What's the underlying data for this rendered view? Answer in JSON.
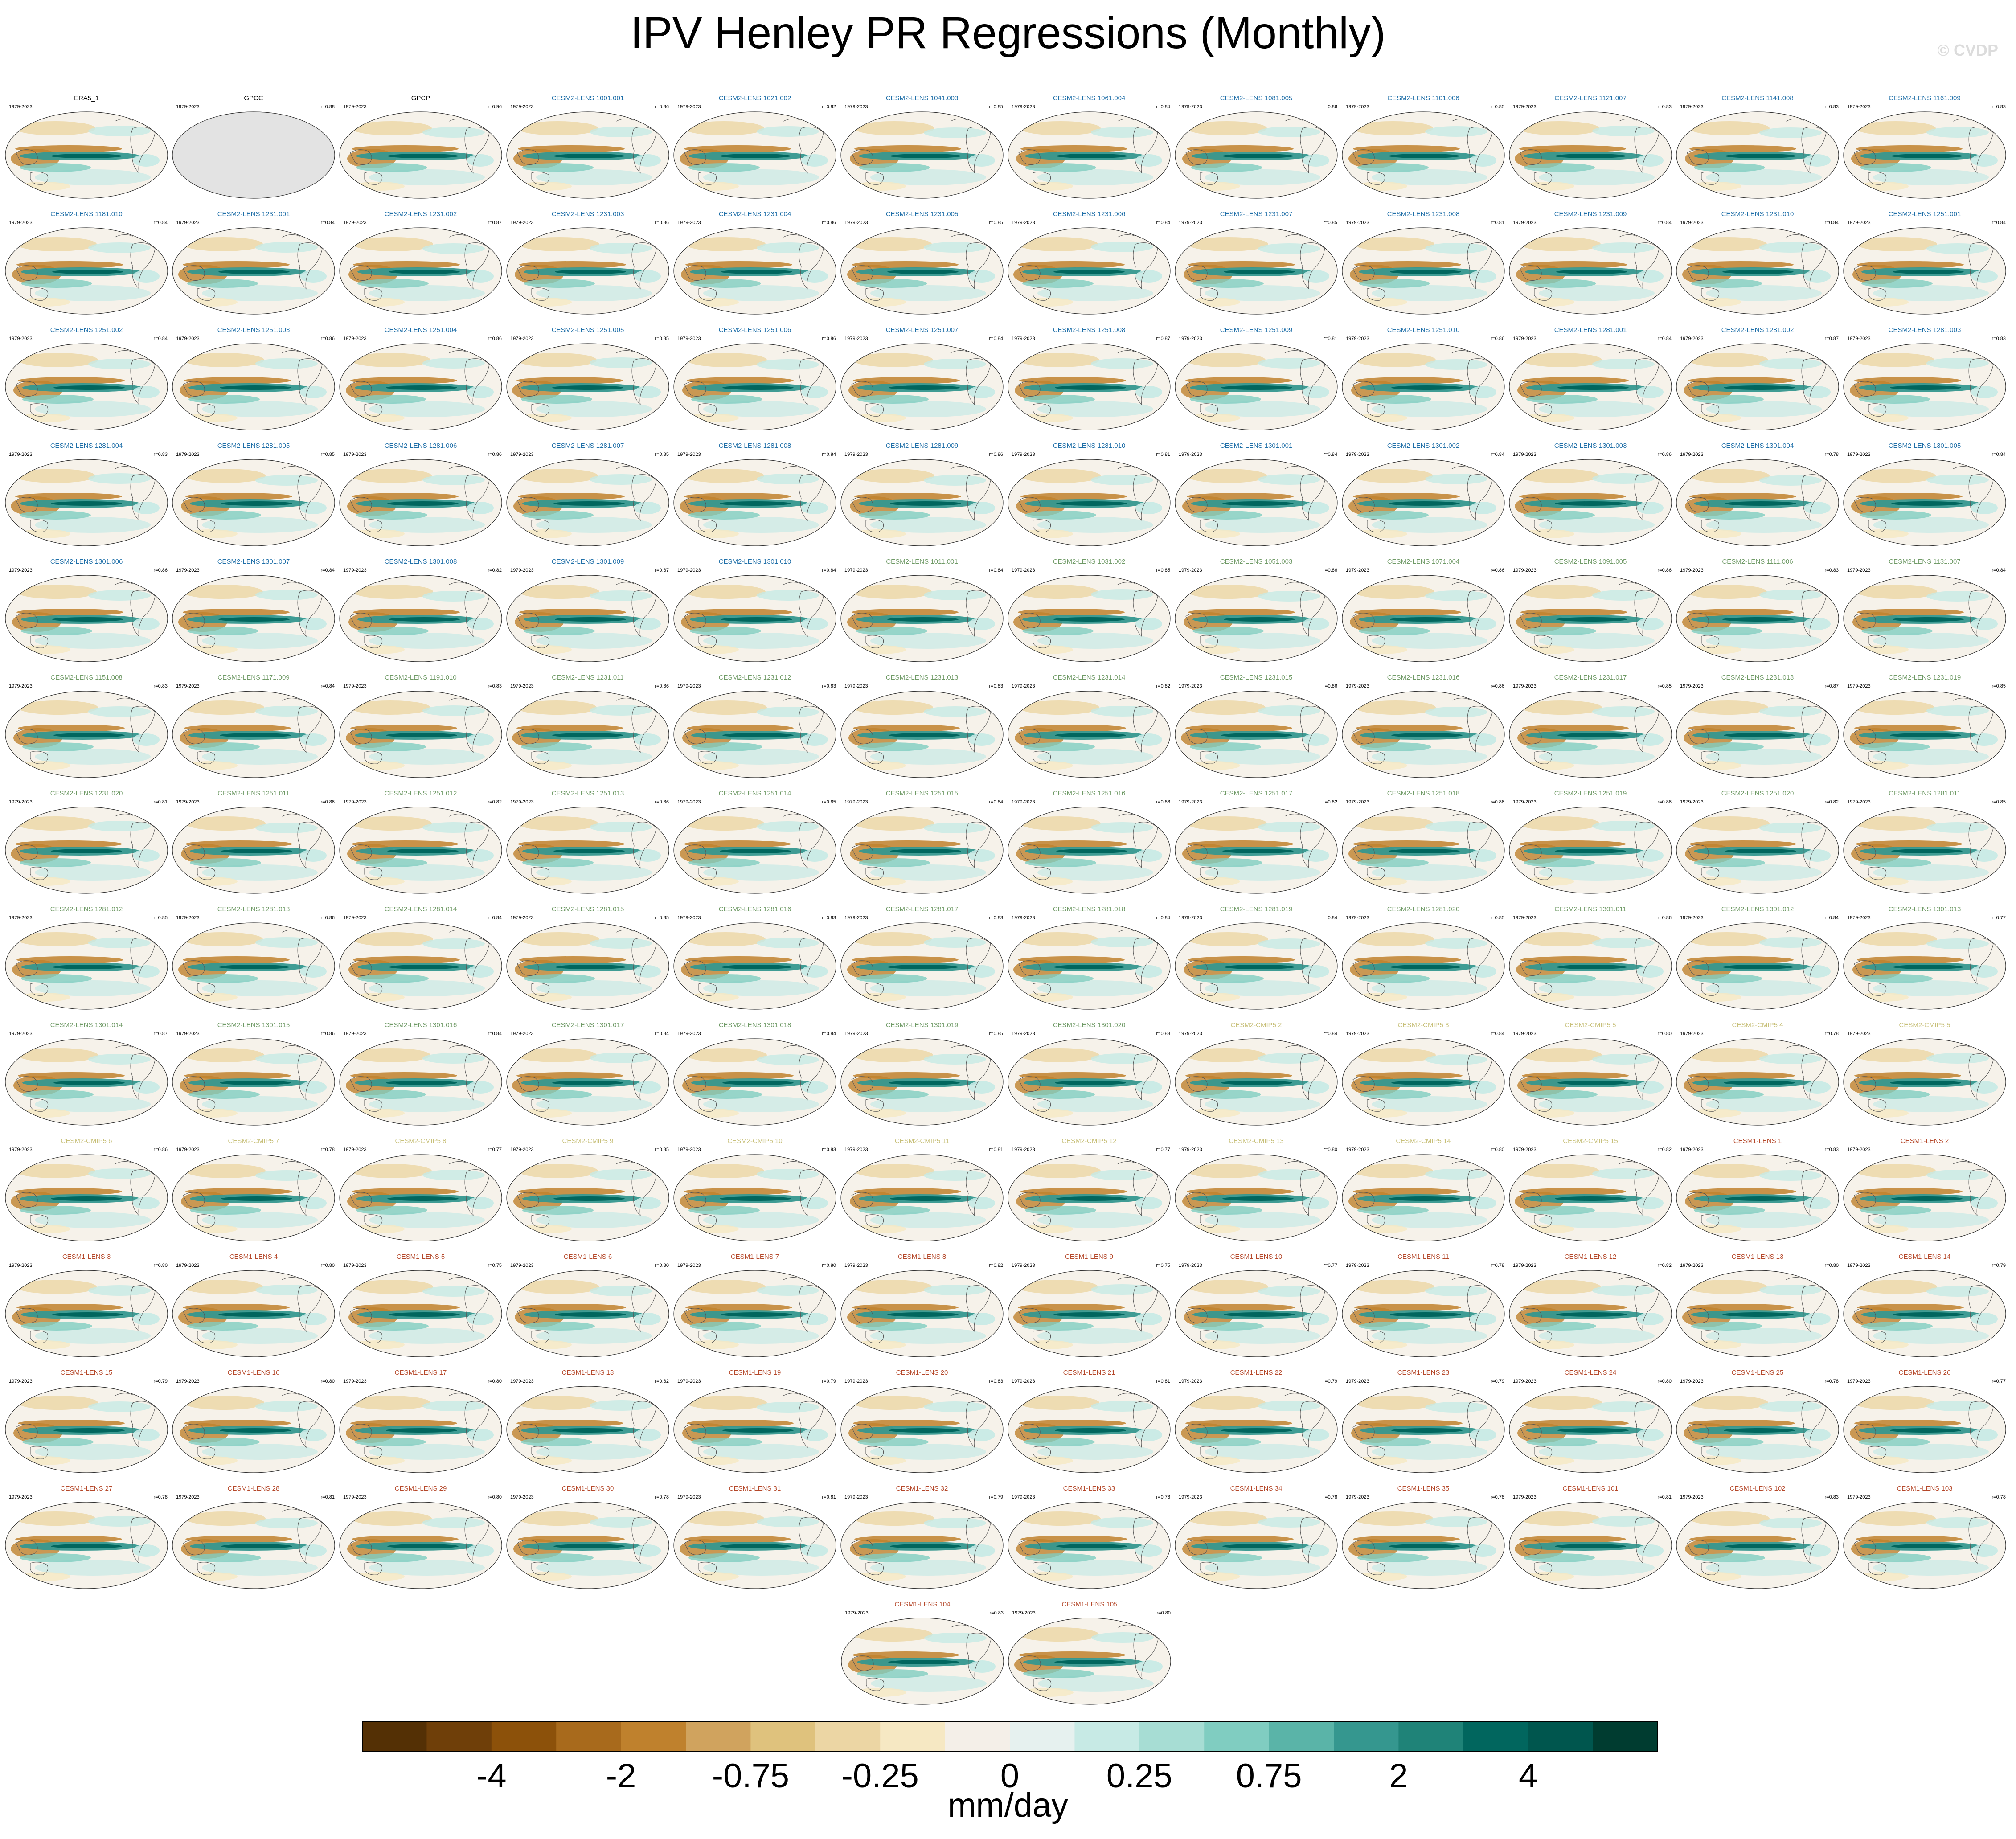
{
  "title": "IPV Henley PR Regressions (Monthly)",
  "watermark": "© CVDP",
  "period": "1979-2023",
  "units": "mm/day",
  "colorbar": {
    "colors": [
      "#543005",
      "#6f3f09",
      "#8c510a",
      "#a86a1c",
      "#bf812d",
      "#d0a35e",
      "#dfc27d",
      "#ecd6a4",
      "#f6e8c3",
      "#f4efe8",
      "#e6f1ef",
      "#c7eae5",
      "#a7ddd4",
      "#80cdc1",
      "#5ab4a8",
      "#35978f",
      "#1f8378",
      "#01665e",
      "#00564e",
      "#003c30"
    ],
    "tick_labels": [
      "-4",
      "-2",
      "-0.75",
      "-0.25",
      "0",
      "0.25",
      "0.75",
      "2",
      "4"
    ]
  },
  "group_colors": {
    "obs": "#000000",
    "cesm2": "#1f6fa8",
    "cesm2_smbb": "#6f9a66",
    "cmip5": "#c8c07a",
    "cesm1": "#b5482a"
  },
  "panels": [
    {
      "title": "ERA5_1",
      "group": "obs",
      "r": ""
    },
    {
      "title": "GPCC",
      "group": "obs",
      "r": "r=0.88",
      "nodata": true
    },
    {
      "title": "GPCP",
      "group": "obs",
      "r": "r=0.96"
    },
    {
      "title": "CESM2-LENS 1001.001",
      "group": "cesm2",
      "r": "r=0.86"
    },
    {
      "title": "CESM2-LENS 1021.002",
      "group": "cesm2",
      "r": "r=0.82"
    },
    {
      "title": "CESM2-LENS 1041.003",
      "group": "cesm2",
      "r": "r=0.85"
    },
    {
      "title": "CESM2-LENS 1061.004",
      "group": "cesm2",
      "r": "r=0.84"
    },
    {
      "title": "CESM2-LENS 1081.005",
      "group": "cesm2",
      "r": "r=0.86"
    },
    {
      "title": "CESM2-LENS 1101.006",
      "group": "cesm2",
      "r": "r=0.85"
    },
    {
      "title": "CESM2-LENS 1121.007",
      "group": "cesm2",
      "r": "r=0.83"
    },
    {
      "title": "CESM2-LENS 1141.008",
      "group": "cesm2",
      "r": "r=0.83"
    },
    {
      "title": "CESM2-LENS 1161.009",
      "group": "cesm2",
      "r": "r=0.83"
    },
    {
      "title": "CESM2-LENS 1181.010",
      "group": "cesm2",
      "r": "r=0.84"
    },
    {
      "title": "CESM2-LENS 1231.001",
      "group": "cesm2",
      "r": "r=0.84"
    },
    {
      "title": "CESM2-LENS 1231.002",
      "group": "cesm2",
      "r": "r=0.87"
    },
    {
      "title": "CESM2-LENS 1231.003",
      "group": "cesm2",
      "r": "r=0.86"
    },
    {
      "title": "CESM2-LENS 1231.004",
      "group": "cesm2",
      "r": "r=0.86"
    },
    {
      "title": "CESM2-LENS 1231.005",
      "group": "cesm2",
      "r": "r=0.85"
    },
    {
      "title": "CESM2-LENS 1231.006",
      "group": "cesm2",
      "r": "r=0.84"
    },
    {
      "title": "CESM2-LENS 1231.007",
      "group": "cesm2",
      "r": "r=0.85"
    },
    {
      "title": "CESM2-LENS 1231.008",
      "group": "cesm2",
      "r": "r=0.81"
    },
    {
      "title": "CESM2-LENS 1231.009",
      "group": "cesm2",
      "r": "r=0.84"
    },
    {
      "title": "CESM2-LENS 1231.010",
      "group": "cesm2",
      "r": "r=0.84"
    },
    {
      "title": "CESM2-LENS 1251.001",
      "group": "cesm2",
      "r": "r=0.84"
    },
    {
      "title": "CESM2-LENS 1251.002",
      "group": "cesm2",
      "r": "r=0.84"
    },
    {
      "title": "CESM2-LENS 1251.003",
      "group": "cesm2",
      "r": "r=0.86"
    },
    {
      "title": "CESM2-LENS 1251.004",
      "group": "cesm2",
      "r": "r=0.86"
    },
    {
      "title": "CESM2-LENS 1251.005",
      "group": "cesm2",
      "r": "r=0.85"
    },
    {
      "title": "CESM2-LENS 1251.006",
      "group": "cesm2",
      "r": "r=0.86"
    },
    {
      "title": "CESM2-LENS 1251.007",
      "group": "cesm2",
      "r": "r=0.84"
    },
    {
      "title": "CESM2-LENS 1251.008",
      "group": "cesm2",
      "r": "r=0.87"
    },
    {
      "title": "CESM2-LENS 1251.009",
      "group": "cesm2",
      "r": "r=0.81"
    },
    {
      "title": "CESM2-LENS 1251.010",
      "group": "cesm2",
      "r": "r=0.86"
    },
    {
      "title": "CESM2-LENS 1281.001",
      "group": "cesm2",
      "r": "r=0.84"
    },
    {
      "title": "CESM2-LENS 1281.002",
      "group": "cesm2",
      "r": "r=0.87"
    },
    {
      "title": "CESM2-LENS 1281.003",
      "group": "cesm2",
      "r": "r=0.83"
    },
    {
      "title": "CESM2-LENS 1281.004",
      "group": "cesm2",
      "r": "r=0.83"
    },
    {
      "title": "CESM2-LENS 1281.005",
      "group": "cesm2",
      "r": "r=0.85"
    },
    {
      "title": "CESM2-LENS 1281.006",
      "group": "cesm2",
      "r": "r=0.86"
    },
    {
      "title": "CESM2-LENS 1281.007",
      "group": "cesm2",
      "r": "r=0.85"
    },
    {
      "title": "CESM2-LENS 1281.008",
      "group": "cesm2",
      "r": "r=0.84"
    },
    {
      "title": "CESM2-LENS 1281.009",
      "group": "cesm2",
      "r": "r=0.86"
    },
    {
      "title": "CESM2-LENS 1281.010",
      "group": "cesm2",
      "r": "r=0.81"
    },
    {
      "title": "CESM2-LENS 1301.001",
      "group": "cesm2",
      "r": "r=0.84"
    },
    {
      "title": "CESM2-LENS 1301.002",
      "group": "cesm2",
      "r": "r=0.84"
    },
    {
      "title": "CESM2-LENS 1301.003",
      "group": "cesm2",
      "r": "r=0.86"
    },
    {
      "title": "CESM2-LENS 1301.004",
      "group": "cesm2",
      "r": "r=0.78"
    },
    {
      "title": "CESM2-LENS 1301.005",
      "group": "cesm2",
      "r": "r=0.84"
    },
    {
      "title": "CESM2-LENS 1301.006",
      "group": "cesm2",
      "r": "r=0.86"
    },
    {
      "title": "CESM2-LENS 1301.007",
      "group": "cesm2",
      "r": "r=0.84"
    },
    {
      "title": "CESM2-LENS 1301.008",
      "group": "cesm2",
      "r": "r=0.82"
    },
    {
      "title": "CESM2-LENS 1301.009",
      "group": "cesm2",
      "r": "r=0.87"
    },
    {
      "title": "CESM2-LENS 1301.010",
      "group": "cesm2",
      "r": "r=0.84"
    },
    {
      "title": "CESM2-LENS 1011.001",
      "group": "cesm2_smbb",
      "r": "r=0.84"
    },
    {
      "title": "CESM2-LENS 1031.002",
      "group": "cesm2_smbb",
      "r": "r=0.85"
    },
    {
      "title": "CESM2-LENS 1051.003",
      "group": "cesm2_smbb",
      "r": "r=0.86"
    },
    {
      "title": "CESM2-LENS 1071.004",
      "group": "cesm2_smbb",
      "r": "r=0.86"
    },
    {
      "title": "CESM2-LENS 1091.005",
      "group": "cesm2_smbb",
      "r": "r=0.86"
    },
    {
      "title": "CESM2-LENS 1111.006",
      "group": "cesm2_smbb",
      "r": "r=0.83"
    },
    {
      "title": "CESM2-LENS 1131.007",
      "group": "cesm2_smbb",
      "r": "r=0.84"
    },
    {
      "title": "CESM2-LENS 1151.008",
      "group": "cesm2_smbb",
      "r": "r=0.83"
    },
    {
      "title": "CESM2-LENS 1171.009",
      "group": "cesm2_smbb",
      "r": "r=0.84"
    },
    {
      "title": "CESM2-LENS 1191.010",
      "group": "cesm2_smbb",
      "r": "r=0.83"
    },
    {
      "title": "CESM2-LENS 1231.011",
      "group": "cesm2_smbb",
      "r": "r=0.86"
    },
    {
      "title": "CESM2-LENS 1231.012",
      "group": "cesm2_smbb",
      "r": "r=0.83"
    },
    {
      "title": "CESM2-LENS 1231.013",
      "group": "cesm2_smbb",
      "r": "r=0.83"
    },
    {
      "title": "CESM2-LENS 1231.014",
      "group": "cesm2_smbb",
      "r": "r=0.82"
    },
    {
      "title": "CESM2-LENS 1231.015",
      "group": "cesm2_smbb",
      "r": "r=0.86"
    },
    {
      "title": "CESM2-LENS 1231.016",
      "group": "cesm2_smbb",
      "r": "r=0.86"
    },
    {
      "title": "CESM2-LENS 1231.017",
      "group": "cesm2_smbb",
      "r": "r=0.85"
    },
    {
      "title": "CESM2-LENS 1231.018",
      "group": "cesm2_smbb",
      "r": "r=0.87"
    },
    {
      "title": "CESM2-LENS 1231.019",
      "group": "cesm2_smbb",
      "r": "r=0.85"
    },
    {
      "title": "CESM2-LENS 1231.020",
      "group": "cesm2_smbb",
      "r": "r=0.81"
    },
    {
      "title": "CESM2-LENS 1251.011",
      "group": "cesm2_smbb",
      "r": "r=0.86"
    },
    {
      "title": "CESM2-LENS 1251.012",
      "group": "cesm2_smbb",
      "r": "r=0.82"
    },
    {
      "title": "CESM2-LENS 1251.013",
      "group": "cesm2_smbb",
      "r": "r=0.86"
    },
    {
      "title": "CESM2-LENS 1251.014",
      "group": "cesm2_smbb",
      "r": "r=0.85"
    },
    {
      "title": "CESM2-LENS 1251.015",
      "group": "cesm2_smbb",
      "r": "r=0.84"
    },
    {
      "title": "CESM2-LENS 1251.016",
      "group": "cesm2_smbb",
      "r": "r=0.86"
    },
    {
      "title": "CESM2-LENS 1251.017",
      "group": "cesm2_smbb",
      "r": "r=0.82"
    },
    {
      "title": "CESM2-LENS 1251.018",
      "group": "cesm2_smbb",
      "r": "r=0.86"
    },
    {
      "title": "CESM2-LENS 1251.019",
      "group": "cesm2_smbb",
      "r": "r=0.86"
    },
    {
      "title": "CESM2-LENS 1251.020",
      "group": "cesm2_smbb",
      "r": "r=0.82"
    },
    {
      "title": "CESM2-LENS 1281.011",
      "group": "cesm2_smbb",
      "r": "r=0.85"
    },
    {
      "title": "CESM2-LENS 1281.012",
      "group": "cesm2_smbb",
      "r": "r=0.85"
    },
    {
      "title": "CESM2-LENS 1281.013",
      "group": "cesm2_smbb",
      "r": "r=0.86"
    },
    {
      "title": "CESM2-LENS 1281.014",
      "group": "cesm2_smbb",
      "r": "r=0.84"
    },
    {
      "title": "CESM2-LENS 1281.015",
      "group": "cesm2_smbb",
      "r": "r=0.85"
    },
    {
      "title": "CESM2-LENS 1281.016",
      "group": "cesm2_smbb",
      "r": "r=0.83"
    },
    {
      "title": "CESM2-LENS 1281.017",
      "group": "cesm2_smbb",
      "r": "r=0.83"
    },
    {
      "title": "CESM2-LENS 1281.018",
      "group": "cesm2_smbb",
      "r": "r=0.84"
    },
    {
      "title": "CESM2-LENS 1281.019",
      "group": "cesm2_smbb",
      "r": "r=0.84"
    },
    {
      "title": "CESM2-LENS 1281.020",
      "group": "cesm2_smbb",
      "r": "r=0.85"
    },
    {
      "title": "CESM2-LENS 1301.011",
      "group": "cesm2_smbb",
      "r": "r=0.86"
    },
    {
      "title": "CESM2-LENS 1301.012",
      "group": "cesm2_smbb",
      "r": "r=0.84"
    },
    {
      "title": "CESM2-LENS 1301.013",
      "group": "cesm2_smbb",
      "r": "r=0.77"
    },
    {
      "title": "CESM2-LENS 1301.014",
      "group": "cesm2_smbb",
      "r": "r=0.87"
    },
    {
      "title": "CESM2-LENS 1301.015",
      "group": "cesm2_smbb",
      "r": "r=0.86"
    },
    {
      "title": "CESM2-LENS 1301.016",
      "group": "cesm2_smbb",
      "r": "r=0.84"
    },
    {
      "title": "CESM2-LENS 1301.017",
      "group": "cesm2_smbb",
      "r": "r=0.84"
    },
    {
      "title": "CESM2-LENS 1301.018",
      "group": "cesm2_smbb",
      "r": "r=0.84"
    },
    {
      "title": "CESM2-LENS 1301.019",
      "group": "cesm2_smbb",
      "r": "r=0.85"
    },
    {
      "title": "CESM2-LENS 1301.020",
      "group": "cesm2_smbb",
      "r": "r=0.83"
    },
    {
      "title": "CESM2-CMIP5 2",
      "group": "cmip5",
      "r": "r=0.84"
    },
    {
      "title": "CESM2-CMIP5 3",
      "group": "cmip5",
      "r": "r=0.84"
    },
    {
      "title": "CESM2-CMIP5 5",
      "group": "cmip5",
      "r": "r=0.80"
    },
    {
      "title": "CESM2-CMIP5 4",
      "group": "cmip5",
      "r": "r=0.78"
    },
    {
      "title": "CESM2-CMIP5 5",
      "group": "cmip5",
      "r": ""
    },
    {
      "title": "CESM2-CMIP5 6",
      "group": "cmip5",
      "r": "r=0.86"
    },
    {
      "title": "CESM2-CMIP5 7",
      "group": "cmip5",
      "r": "r=0.78"
    },
    {
      "title": "CESM2-CMIP5 8",
      "group": "cmip5",
      "r": "r=0.77"
    },
    {
      "title": "CESM2-CMIP5 9",
      "group": "cmip5",
      "r": "r=0.85"
    },
    {
      "title": "CESM2-CMIP5 10",
      "group": "cmip5",
      "r": "r=0.83"
    },
    {
      "title": "CESM2-CMIP5 11",
      "group": "cmip5",
      "r": "r=0.81"
    },
    {
      "title": "CESM2-CMIP5 12",
      "group": "cmip5",
      "r": "r=0.77"
    },
    {
      "title": "CESM2-CMIP5 13",
      "group": "cmip5",
      "r": "r=0.80"
    },
    {
      "title": "CESM2-CMIP5 14",
      "group": "cmip5",
      "r": "r=0.80"
    },
    {
      "title": "CESM2-CMIP5 15",
      "group": "cmip5",
      "r": "r=0.82"
    },
    {
      "title": "CESM1-LENS 1",
      "group": "cesm1",
      "r": "r=0.83"
    },
    {
      "title": "CESM1-LENS 2",
      "group": "cesm1",
      "r": ""
    },
    {
      "title": "CESM1-LENS 3",
      "group": "cesm1",
      "r": "r=0.80"
    },
    {
      "title": "CESM1-LENS 4",
      "group": "cesm1",
      "r": "r=0.80"
    },
    {
      "title": "CESM1-LENS 5",
      "group": "cesm1",
      "r": "r=0.75"
    },
    {
      "title": "CESM1-LENS 6",
      "group": "cesm1",
      "r": "r=0.80"
    },
    {
      "title": "CESM1-LENS 7",
      "group": "cesm1",
      "r": "r=0.80"
    },
    {
      "title": "CESM1-LENS 8",
      "group": "cesm1",
      "r": "r=0.82"
    },
    {
      "title": "CESM1-LENS 9",
      "group": "cesm1",
      "r": "r=0.75"
    },
    {
      "title": "CESM1-LENS 10",
      "group": "cesm1",
      "r": "r=0.77"
    },
    {
      "title": "CESM1-LENS 11",
      "group": "cesm1",
      "r": "r=0.78"
    },
    {
      "title": "CESM1-LENS 12",
      "group": "cesm1",
      "r": "r=0.82"
    },
    {
      "title": "CESM1-LENS 13",
      "group": "cesm1",
      "r": "r=0.80"
    },
    {
      "title": "CESM1-LENS 14",
      "group": "cesm1",
      "r": "r=0.79"
    },
    {
      "title": "CESM1-LENS 15",
      "group": "cesm1",
      "r": "r=0.79"
    },
    {
      "title": "CESM1-LENS 16",
      "group": "cesm1",
      "r": "r=0.80"
    },
    {
      "title": "CESM1-LENS 17",
      "group": "cesm1",
      "r": "r=0.80"
    },
    {
      "title": "CESM1-LENS 18",
      "group": "cesm1",
      "r": "r=0.82"
    },
    {
      "title": "CESM1-LENS 19",
      "group": "cesm1",
      "r": "r=0.79"
    },
    {
      "title": "CESM1-LENS 20",
      "group": "cesm1",
      "r": "r=0.83"
    },
    {
      "title": "CESM1-LENS 21",
      "group": "cesm1",
      "r": "r=0.81"
    },
    {
      "title": "CESM1-LENS 22",
      "group": "cesm1",
      "r": "r=0.79"
    },
    {
      "title": "CESM1-LENS 23",
      "group": "cesm1",
      "r": "r=0.79"
    },
    {
      "title": "CESM1-LENS 24",
      "group": "cesm1",
      "r": "r=0.80"
    },
    {
      "title": "CESM1-LENS 25",
      "group": "cesm1",
      "r": "r=0.78"
    },
    {
      "title": "CESM1-LENS 26",
      "group": "cesm1",
      "r": "r=0.77"
    },
    {
      "title": "CESM1-LENS 27",
      "group": "cesm1",
      "r": "r=0.78"
    },
    {
      "title": "CESM1-LENS 28",
      "group": "cesm1",
      "r": "r=0.81"
    },
    {
      "title": "CESM1-LENS 29",
      "group": "cesm1",
      "r": "r=0.80"
    },
    {
      "title": "CESM1-LENS 30",
      "group": "cesm1",
      "r": "r=0.78"
    },
    {
      "title": "CESM1-LENS 31",
      "group": "cesm1",
      "r": "r=0.81"
    },
    {
      "title": "CESM1-LENS 32",
      "group": "cesm1",
      "r": "r=0.79"
    },
    {
      "title": "CESM1-LENS 33",
      "group": "cesm1",
      "r": "r=0.78"
    },
    {
      "title": "CESM1-LENS 34",
      "group": "cesm1",
      "r": "r=0.78"
    },
    {
      "title": "CESM1-LENS 35",
      "group": "cesm1",
      "r": "r=0.78"
    },
    {
      "title": "CESM1-LENS 101",
      "group": "cesm1",
      "r": "r=0.81"
    },
    {
      "title": "CESM1-LENS 102",
      "group": "cesm1",
      "r": "r=0.83"
    },
    {
      "title": "CESM1-LENS 103",
      "group": "cesm1",
      "r": "r=0.78"
    },
    {
      "title": "CESM1-LENS 104",
      "group": "cesm1",
      "r": "r=0.83"
    },
    {
      "title": "CESM1-LENS 105",
      "group": "cesm1",
      "r": "r=0.80"
    }
  ]
}
